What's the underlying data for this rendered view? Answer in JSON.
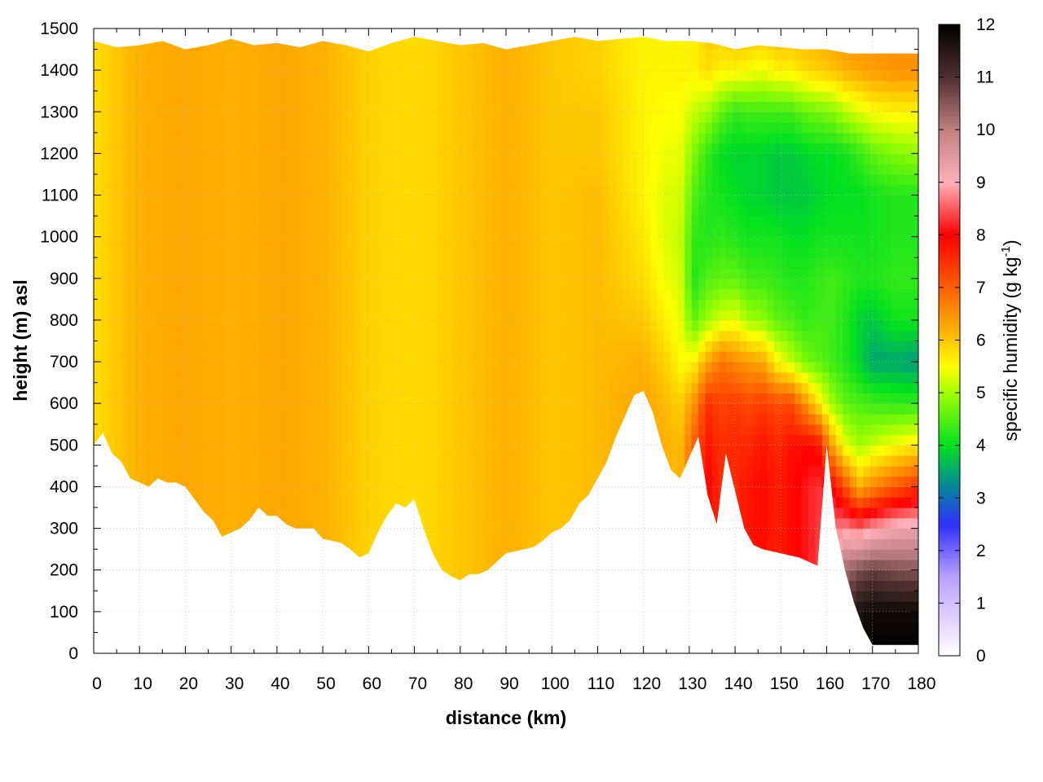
{
  "chart_data": {
    "type": "heatmap",
    "title": "",
    "xlabel": "distance (km)",
    "ylabel": "height (m) asl",
    "colorbar_label_main": "specific humidity (g kg",
    "colorbar_label_exp": "-1",
    "colorbar_label_close": ")",
    "xlim": [
      0,
      180
    ],
    "ylim": [
      0,
      1500
    ],
    "x_ticks": [
      "0",
      "10",
      "20",
      "30",
      "40",
      "50",
      "60",
      "70",
      "80",
      "90",
      "100",
      "110",
      "120",
      "130",
      "140",
      "150",
      "160",
      "170",
      "180"
    ],
    "y_ticks": [
      "0",
      "100",
      "200",
      "300",
      "400",
      "500",
      "600",
      "700",
      "800",
      "900",
      "1000",
      "1100",
      "1200",
      "1300",
      "1400",
      "1500"
    ],
    "colorbar_range": [
      0,
      12
    ],
    "colorbar_ticks": [
      "0",
      "1",
      "2",
      "3",
      "4",
      "5",
      "6",
      "7",
      "8",
      "9",
      "10",
      "11",
      "12"
    ],
    "grid": true,
    "palette_stops": [
      {
        "v": 0,
        "color": "#ffffff"
      },
      {
        "v": 1.5,
        "color": "#b9a0ff"
      },
      {
        "v": 2.5,
        "color": "#3030ff"
      },
      {
        "v": 3.3,
        "color": "#009090"
      },
      {
        "v": 4.0,
        "color": "#00e020"
      },
      {
        "v": 5.0,
        "color": "#a0ff00"
      },
      {
        "v": 5.5,
        "color": "#ffff00"
      },
      {
        "v": 6.2,
        "color": "#ffb000"
      },
      {
        "v": 7.0,
        "color": "#ff6000"
      },
      {
        "v": 8.0,
        "color": "#ff0000"
      },
      {
        "v": 9.0,
        "color": "#ffb0b8"
      },
      {
        "v": 10.0,
        "color": "#c08080"
      },
      {
        "v": 11.0,
        "color": "#503030"
      },
      {
        "v": 12.0,
        "color": "#000000"
      }
    ],
    "ground_profile": {
      "x": [
        0,
        2,
        4,
        6,
        8,
        10,
        12,
        14,
        16,
        18,
        20,
        22,
        24,
        26,
        28,
        30,
        32,
        34,
        36,
        38,
        40,
        42,
        44,
        46,
        48,
        50,
        52,
        54,
        56,
        58,
        60,
        62,
        64,
        66,
        68,
        70,
        72,
        74,
        76,
        78,
        80,
        82,
        84,
        86,
        88,
        90,
        92,
        94,
        96,
        98,
        100,
        102,
        104,
        106,
        108,
        110,
        112,
        114,
        116,
        118,
        120,
        122,
        124,
        126,
        128,
        130,
        132,
        134,
        136,
        138,
        140,
        142,
        144,
        146,
        148,
        150,
        152,
        154,
        156,
        158,
        160,
        162,
        164,
        166,
        168,
        170,
        172,
        174,
        176,
        178,
        180
      ],
      "h": [
        500,
        530,
        480,
        460,
        420,
        410,
        400,
        420,
        410,
        410,
        400,
        370,
        340,
        320,
        280,
        290,
        300,
        320,
        350,
        330,
        330,
        310,
        300,
        300,
        300,
        275,
        270,
        265,
        250,
        230,
        240,
        290,
        330,
        360,
        350,
        370,
        300,
        240,
        200,
        185,
        175,
        190,
        190,
        200,
        220,
        240,
        245,
        250,
        255,
        270,
        290,
        300,
        320,
        360,
        380,
        420,
        460,
        520,
        570,
        620,
        630,
        580,
        500,
        440,
        420,
        470,
        520,
        380,
        310,
        480,
        390,
        300,
        260,
        250,
        245,
        240,
        235,
        230,
        220,
        210,
        500,
        300,
        200,
        120,
        60,
        20,
        20,
        20,
        20,
        20,
        20
      ]
    },
    "top_profile": {
      "x": [
        0,
        5,
        10,
        15,
        20,
        25,
        30,
        35,
        40,
        45,
        50,
        55,
        60,
        65,
        70,
        75,
        80,
        85,
        90,
        95,
        100,
        105,
        110,
        115,
        120,
        125,
        130,
        135,
        140,
        145,
        150,
        155,
        160,
        165,
        170,
        175,
        180
      ],
      "h": [
        1470,
        1455,
        1460,
        1470,
        1450,
        1460,
        1475,
        1460,
        1465,
        1455,
        1470,
        1460,
        1445,
        1465,
        1480,
        1470,
        1460,
        1465,
        1450,
        1460,
        1470,
        1480,
        1470,
        1475,
        1480,
        1470,
        1470,
        1465,
        1450,
        1460,
        1455,
        1450,
        1450,
        1440,
        1440,
        1440,
        1440
      ]
    },
    "humidity_field": {
      "x_km": [
        0,
        10,
        20,
        30,
        40,
        50,
        60,
        70,
        80,
        90,
        100,
        110,
        120,
        125,
        128,
        131,
        134,
        137,
        140,
        143,
        146,
        149,
        152,
        155,
        158,
        161,
        164,
        167,
        170,
        175,
        180
      ],
      "z_m": [
        0,
        100,
        200,
        300,
        400,
        500,
        600,
        700,
        800,
        900,
        1000,
        1100,
        1200,
        1300,
        1400,
        1500
      ],
      "values": [
        [
          5.8,
          5.8,
          5.8,
          5.8,
          5.8,
          5.8,
          5.8,
          5.8,
          5.8,
          5.8,
          5.8,
          5.8,
          5.8,
          5.8,
          5.8,
          5.8
        ],
        [
          6.2,
          6.2,
          6.2,
          6.2,
          6.2,
          6.2,
          6.2,
          6.2,
          6.2,
          6.2,
          6.2,
          6.2,
          6.2,
          6.2,
          6.2,
          6.2
        ],
        [
          6.3,
          6.3,
          6.3,
          6.3,
          6.3,
          6.3,
          6.3,
          6.3,
          6.3,
          6.3,
          6.3,
          6.3,
          6.3,
          6.3,
          6.3,
          6.3
        ],
        [
          6.2,
          6.2,
          6.2,
          6.2,
          6.2,
          6.2,
          6.2,
          6.2,
          6.2,
          6.2,
          6.2,
          6.2,
          6.2,
          6.2,
          6.2,
          6.2
        ],
        [
          6.3,
          6.3,
          6.3,
          6.3,
          6.3,
          6.3,
          6.3,
          6.3,
          6.3,
          6.3,
          6.3,
          6.3,
          6.3,
          6.3,
          6.3,
          6.3
        ],
        [
          6.2,
          6.2,
          6.2,
          6.2,
          6.2,
          6.2,
          6.2,
          6.2,
          6.2,
          6.2,
          6.2,
          6.2,
          6.2,
          6.2,
          6.2,
          6.2
        ],
        [
          5.9,
          5.9,
          5.9,
          5.9,
          5.9,
          5.9,
          5.9,
          5.9,
          5.9,
          5.9,
          5.9,
          5.9,
          5.9,
          5.9,
          5.9,
          5.9
        ],
        [
          5.8,
          5.8,
          5.8,
          5.8,
          5.8,
          5.8,
          5.8,
          5.8,
          5.8,
          5.8,
          5.8,
          5.8,
          5.8,
          5.8,
          5.8,
          5.8
        ],
        [
          6.0,
          6.0,
          6.0,
          6.0,
          6.0,
          6.0,
          6.0,
          6.0,
          6.0,
          6.0,
          6.0,
          6.0,
          6.0,
          6.0,
          6.0,
          6.0
        ],
        [
          6.2,
          6.2,
          6.2,
          6.2,
          6.2,
          6.2,
          6.2,
          6.2,
          6.2,
          6.2,
          6.2,
          6.2,
          6.2,
          6.2,
          6.2,
          6.2
        ],
        [
          6.0,
          6.0,
          6.0,
          6.0,
          6.0,
          6.0,
          6.0,
          6.0,
          6.0,
          6.0,
          6.0,
          6.0,
          6.0,
          6.0,
          6.0,
          6.0
        ],
        [
          6.1,
          6.1,
          6.1,
          6.1,
          6.1,
          6.1,
          6.1,
          6.1,
          6.1,
          6.1,
          6.1,
          6.1,
          6.0,
          6.0,
          5.9,
          5.9
        ],
        [
          6.3,
          6.3,
          6.3,
          6.3,
          6.3,
          6.3,
          6.3,
          6.2,
          6.0,
          5.8,
          5.7,
          5.6,
          5.6,
          5.6,
          5.6,
          5.6
        ],
        [
          6.2,
          6.2,
          6.2,
          6.2,
          6.2,
          6.2,
          6.1,
          5.9,
          5.6,
          5.4,
          5.3,
          5.3,
          5.4,
          5.5,
          5.6,
          5.6
        ],
        [
          6.1,
          6.1,
          6.1,
          6.1,
          6.1,
          6.1,
          5.9,
          5.5,
          5.4,
          5.3,
          5.2,
          5.3,
          5.4,
          5.5,
          5.6,
          5.6
        ],
        [
          7.2,
          7.2,
          7.2,
          7.2,
          7.2,
          7.0,
          6.5,
          5.6,
          4.6,
          4.2,
          4.3,
          4.5,
          4.8,
          5.2,
          5.6,
          5.6
        ],
        [
          8.0,
          8.0,
          8.0,
          8.0,
          8.0,
          7.8,
          7.5,
          6.3,
          5.0,
          4.5,
          4.2,
          4.2,
          4.3,
          5.0,
          5.8,
          6.0
        ],
        [
          7.5,
          7.5,
          7.5,
          7.5,
          7.5,
          7.5,
          7.3,
          6.8,
          5.3,
          4.6,
          4.3,
          4.1,
          4.0,
          4.6,
          5.6,
          6.0
        ],
        [
          7.6,
          7.6,
          7.6,
          7.6,
          7.6,
          7.6,
          7.4,
          6.6,
          5.4,
          4.6,
          4.2,
          4.0,
          3.9,
          4.3,
          5.6,
          6.2
        ],
        [
          7.8,
          7.8,
          7.8,
          7.8,
          7.8,
          7.6,
          7.2,
          6.4,
          5.0,
          4.4,
          4.1,
          3.9,
          3.9,
          4.4,
          5.5,
          6.1
        ],
        [
          7.9,
          7.9,
          7.9,
          7.9,
          7.9,
          7.8,
          7.4,
          6.3,
          4.9,
          4.4,
          4.1,
          3.9,
          3.9,
          4.4,
          5.4,
          6.1
        ],
        [
          7.7,
          7.7,
          7.7,
          7.7,
          7.7,
          7.6,
          7.2,
          5.6,
          4.6,
          4.3,
          4.1,
          3.8,
          3.8,
          4.4,
          5.6,
          6.2
        ],
        [
          7.9,
          7.9,
          7.9,
          7.9,
          7.9,
          7.8,
          7.3,
          5.2,
          4.5,
          4.2,
          4.0,
          3.8,
          3.8,
          4.4,
          5.6,
          6.2
        ],
        [
          8.1,
          8.1,
          8.1,
          8.1,
          8.1,
          7.9,
          6.6,
          4.8,
          4.3,
          4.2,
          4.0,
          3.8,
          3.9,
          4.6,
          5.8,
          6.2
        ],
        [
          8.3,
          8.3,
          8.3,
          8.3,
          8.3,
          7.9,
          5.8,
          4.6,
          4.4,
          4.3,
          4.1,
          3.9,
          4.0,
          4.7,
          5.9,
          6.3
        ],
        [
          9.2,
          9.2,
          9.2,
          8.6,
          8.0,
          6.4,
          5.0,
          4.4,
          4.4,
          4.4,
          4.1,
          4.0,
          4.0,
          4.8,
          6.0,
          6.4
        ],
        [
          11.5,
          11.0,
          10.3,
          8.8,
          7.2,
          5.4,
          4.6,
          4.2,
          4.2,
          4.3,
          4.1,
          4.0,
          4.1,
          5.1,
          6.2,
          6.5
        ],
        [
          12.0,
          11.6,
          10.6,
          8.6,
          6.2,
          5.0,
          4.5,
          3.9,
          3.9,
          4.2,
          4.1,
          4.0,
          4.3,
          5.3,
          6.3,
          6.5
        ],
        [
          12.0,
          11.8,
          10.8,
          8.9,
          6.6,
          5.2,
          4.4,
          3.5,
          3.8,
          4.2,
          4.1,
          4.1,
          4.6,
          5.5,
          6.4,
          6.5
        ],
        [
          12.0,
          11.8,
          10.6,
          9.2,
          7.1,
          5.5,
          4.3,
          3.5,
          4.1,
          4.3,
          4.2,
          4.2,
          4.8,
          5.6,
          6.5,
          6.5
        ],
        [
          12.0,
          11.8,
          10.5,
          9.3,
          7.5,
          5.7,
          4.3,
          3.4,
          4.1,
          4.3,
          4.2,
          4.2,
          4.9,
          5.6,
          6.5,
          6.5
        ]
      ]
    }
  }
}
